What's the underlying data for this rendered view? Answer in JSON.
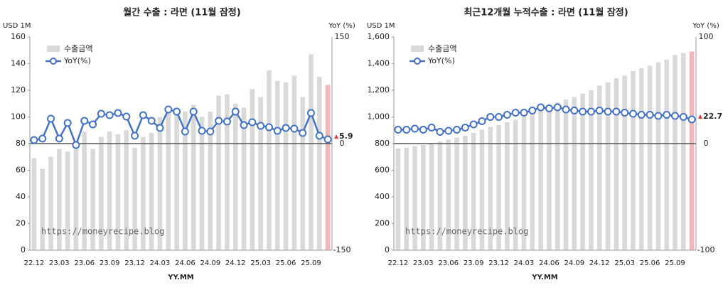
{
  "chart_data": [
    {
      "type": "combo",
      "title": "월간 수출 : 라면 (11월 잠정)",
      "y_label": "USD 1M",
      "y2_label": "YoY (%)",
      "x_label": "YY.MM",
      "annotation": "https://moneyrecipe.blog",
      "categories": [
        "22.12",
        null,
        null,
        "23.03",
        null,
        null,
        "23.06",
        null,
        null,
        "23.09",
        null,
        null,
        "23.12",
        null,
        null,
        "24.03",
        null,
        null,
        "24.06",
        null,
        null,
        "24.09",
        null,
        null,
        "24.12",
        null,
        null,
        "25.03",
        null,
        null,
        "25.06",
        null,
        null,
        "25.09",
        null,
        null
      ],
      "series": [
        {
          "name": "수출금액",
          "color": "#d9d9d9",
          "values": [
            69,
            61,
            70,
            76,
            74,
            76,
            89,
            76,
            85,
            89,
            87,
            90,
            77,
            85,
            88,
            100,
            108,
            107,
            104,
            109,
            100,
            104,
            116,
            117,
            110,
            107,
            121,
            115,
            135,
            127,
            126,
            131,
            115,
            147,
            130,
            124
          ]
        },
        {
          "name": "YoY(%)",
          "color": "#4472c4",
          "axis": "y2",
          "values": [
            5,
            7,
            35,
            7,
            29,
            -2,
            32,
            27,
            42,
            40,
            43,
            38,
            11,
            40,
            32,
            22,
            48,
            45,
            17,
            45,
            18,
            17,
            32,
            31,
            45,
            26,
            30,
            25,
            23,
            18,
            22,
            21,
            15,
            43,
            11,
            5.9
          ]
        }
      ],
      "highlight_color": "#f2b8b8",
      "label_color": "#e53935",
      "ylim": [
        0,
        160
      ],
      "yticks": [
        0,
        20,
        40,
        60,
        80,
        100,
        120,
        140,
        160
      ],
      "y2lim": [
        -150,
        150
      ],
      "y2ticks": [
        -150,
        0,
        150
      ]
    },
    {
      "type": "combo",
      "title": "최근12개월 누적수출 : 라면 (11월 잠정)",
      "y_label": "USD 1M",
      "y2_label": "YoY (%)",
      "x_label": "YY.MM",
      "annotation": "https://moneyrecipe.blog",
      "categories": [
        "22.12",
        null,
        null,
        "23.03",
        null,
        null,
        "23.06",
        null,
        null,
        "23.09",
        null,
        null,
        "23.12",
        null,
        null,
        "24.03",
        null,
        null,
        "24.06",
        null,
        null,
        "24.09",
        null,
        null,
        "24.12",
        null,
        null,
        "25.03",
        null,
        null,
        "25.06",
        null,
        null,
        "25.09",
        null,
        null
      ],
      "series": [
        {
          "name": "수출금액",
          "color": "#d9d9d9",
          "values": [
            765,
            770,
            780,
            790,
            800,
            815,
            830,
            845,
            860,
            880,
            905,
            925,
            940,
            960,
            980,
            1000,
            1030,
            1060,
            1080,
            1110,
            1130,
            1150,
            1175,
            1200,
            1235,
            1260,
            1290,
            1310,
            1345,
            1365,
            1385,
            1410,
            1430,
            1465,
            1480,
            1490
          ]
        },
        {
          "name": "YoY(%)",
          "color": "#4472c4",
          "axis": "y2",
          "values": [
            13,
            13,
            14,
            13,
            15,
            11,
            12,
            13,
            15,
            18,
            21,
            25,
            25,
            27,
            29,
            29,
            31,
            34,
            33,
            34,
            32,
            31,
            30,
            30,
            31,
            30,
            30,
            29,
            28,
            27,
            27,
            26,
            27,
            26,
            25,
            22.7
          ]
        }
      ],
      "highlight_color": "#f2b8b8",
      "label_color": "#e53935",
      "ylim": [
        0,
        1600
      ],
      "yticks": [
        0,
        200,
        400,
        600,
        800,
        {
          "value": 1000,
          "label": "1,000"
        },
        {
          "value": 1200,
          "label": "1,200"
        },
        {
          "value": 1400,
          "label": "1,400"
        },
        {
          "value": 1600,
          "label": "1,600"
        }
      ],
      "y2lim": [
        -100,
        100
      ],
      "y2ticks": [
        -100,
        0,
        100
      ]
    }
  ]
}
